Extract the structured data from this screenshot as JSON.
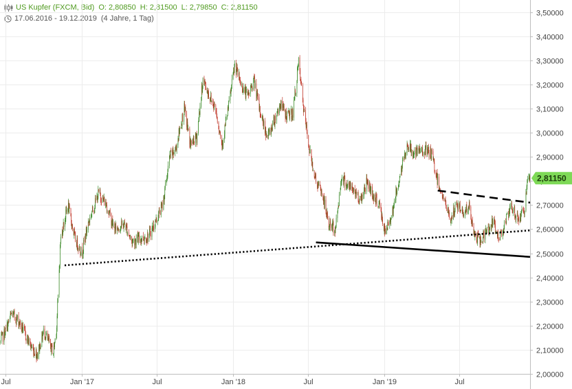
{
  "header": {
    "instrument": "US Kupfer (FXCM, Bid)",
    "open": "O: 2,80850",
    "high": "H: 2,81500",
    "low": "L: 2,79850",
    "close": "C: 2,81150",
    "range": "17.06.2016 - 19.12.2019",
    "interval": "(4 Jahre, 1 Tag)",
    "icon_ohlc": "candlestick-icon",
    "icon_time": "clock-icon"
  },
  "colors": {
    "up": "#3d8b2a",
    "down": "#c0392b",
    "last_price_bg": "#7ed957",
    "grid": "#ececec",
    "header_text": "#4f9a1f"
  },
  "chart_data": {
    "type": "candlestick",
    "title": "US Kupfer (FXCM, Bid)",
    "y_axis": {
      "min": 2.0,
      "max": 3.55,
      "side": "right",
      "ticks": [
        "3,50000",
        "3,40000",
        "3,30000",
        "3,20000",
        "3,10000",
        "3,00000",
        "2,90000",
        "2,80000",
        "2,70000",
        "2,60000",
        "2,50000",
        "2,40000",
        "2,30000",
        "2,20000",
        "2,10000",
        "2,00000"
      ],
      "tick_values": [
        3.5,
        3.4,
        3.3,
        3.2,
        3.1,
        3.0,
        2.9,
        2.8,
        2.7,
        2.6,
        2.5,
        2.4,
        2.3,
        2.2,
        2.1,
        2.0
      ]
    },
    "x_axis": {
      "start": "2016-06-17",
      "end": "2019-12-19",
      "ticks": [
        {
          "label": "Jul",
          "date": "2016-07-01"
        },
        {
          "label": "Jan '17",
          "date": "2017-01-01"
        },
        {
          "label": "Jul",
          "date": "2017-07-01"
        },
        {
          "label": "Jan '18",
          "date": "2018-01-01"
        },
        {
          "label": "Jul",
          "date": "2018-07-01"
        },
        {
          "label": "Jan '19",
          "date": "2019-01-01"
        },
        {
          "label": "Jul",
          "date": "2019-07-01"
        }
      ]
    },
    "grid": true,
    "last_price": {
      "label": "2,81150",
      "value": 2.8115
    },
    "price_path": [
      [
        "2016-06-17",
        2.13
      ],
      [
        "2016-07-01",
        2.18
      ],
      [
        "2016-07-15",
        2.25
      ],
      [
        "2016-08-01",
        2.22
      ],
      [
        "2016-08-15",
        2.17
      ],
      [
        "2016-09-01",
        2.11
      ],
      [
        "2016-09-15",
        2.08
      ],
      [
        "2016-10-01",
        2.18
      ],
      [
        "2016-10-15",
        2.12
      ],
      [
        "2016-10-24",
        2.09
      ],
      [
        "2016-11-01",
        2.2
      ],
      [
        "2016-11-10",
        2.55
      ],
      [
        "2016-11-15",
        2.6
      ],
      [
        "2016-11-28",
        2.7
      ],
      [
        "2016-12-15",
        2.56
      ],
      [
        "2017-01-01",
        2.5
      ],
      [
        "2017-01-15",
        2.62
      ],
      [
        "2017-02-10",
        2.75
      ],
      [
        "2017-03-01",
        2.7
      ],
      [
        "2017-03-20",
        2.6
      ],
      [
        "2017-04-15",
        2.62
      ],
      [
        "2017-05-01",
        2.55
      ],
      [
        "2017-05-20",
        2.56
      ],
      [
        "2017-06-10",
        2.57
      ],
      [
        "2017-06-25",
        2.62
      ],
      [
        "2017-07-15",
        2.7
      ],
      [
        "2017-08-01",
        2.9
      ],
      [
        "2017-08-15",
        2.93
      ],
      [
        "2017-09-05",
        3.1
      ],
      [
        "2017-09-20",
        2.95
      ],
      [
        "2017-10-05",
        2.98
      ],
      [
        "2017-10-20",
        3.22
      ],
      [
        "2017-11-05",
        3.15
      ],
      [
        "2017-11-20",
        3.1
      ],
      [
        "2017-12-05",
        2.95
      ],
      [
        "2017-12-20",
        3.1
      ],
      [
        "2018-01-05",
        3.28
      ],
      [
        "2018-01-20",
        3.2
      ],
      [
        "2018-02-05",
        3.15
      ],
      [
        "2018-02-20",
        3.22
      ],
      [
        "2018-03-05",
        3.1
      ],
      [
        "2018-03-25",
        2.98
      ],
      [
        "2018-04-10",
        3.05
      ],
      [
        "2018-04-25",
        3.12
      ],
      [
        "2018-05-10",
        3.07
      ],
      [
        "2018-05-25",
        3.08
      ],
      [
        "2018-06-08",
        3.29
      ],
      [
        "2018-06-20",
        3.1
      ],
      [
        "2018-07-05",
        2.92
      ],
      [
        "2018-07-20",
        2.8
      ],
      [
        "2018-08-05",
        2.74
      ],
      [
        "2018-08-20",
        2.62
      ],
      [
        "2018-09-05",
        2.6
      ],
      [
        "2018-09-20",
        2.82
      ],
      [
        "2018-10-05",
        2.78
      ],
      [
        "2018-10-20",
        2.76
      ],
      [
        "2018-11-05",
        2.72
      ],
      [
        "2018-11-20",
        2.8
      ],
      [
        "2018-12-05",
        2.74
      ],
      [
        "2018-12-20",
        2.7
      ],
      [
        "2019-01-03",
        2.58
      ],
      [
        "2019-01-20",
        2.67
      ],
      [
        "2019-02-05",
        2.8
      ],
      [
        "2019-02-25",
        2.95
      ],
      [
        "2019-03-15",
        2.91
      ],
      [
        "2019-04-05",
        2.93
      ],
      [
        "2019-04-25",
        2.91
      ],
      [
        "2019-05-10",
        2.8
      ],
      [
        "2019-05-25",
        2.72
      ],
      [
        "2019-06-10",
        2.64
      ],
      [
        "2019-06-25",
        2.7
      ],
      [
        "2019-07-10",
        2.67
      ],
      [
        "2019-07-25",
        2.69
      ],
      [
        "2019-08-05",
        2.58
      ],
      [
        "2019-08-20",
        2.55
      ],
      [
        "2019-09-05",
        2.59
      ],
      [
        "2019-09-20",
        2.63
      ],
      [
        "2019-10-05",
        2.56
      ],
      [
        "2019-10-20",
        2.63
      ],
      [
        "2019-11-05",
        2.69
      ],
      [
        "2019-11-20",
        2.64
      ],
      [
        "2019-12-05",
        2.68
      ],
      [
        "2019-12-12",
        2.78
      ],
      [
        "2019-12-19",
        2.81
      ]
    ],
    "trendlines": [
      {
        "style": "dotted",
        "from": [
          "2016-11-20",
          2.45
        ],
        "to": [
          "2019-12-19",
          2.595
        ]
      },
      {
        "style": "solid",
        "from": [
          "2018-07-20",
          2.545
        ],
        "to": [
          "2019-12-19",
          2.485
        ]
      },
      {
        "style": "dashed",
        "from": [
          "2019-05-10",
          2.76
        ],
        "to": [
          "2019-12-19",
          2.71
        ]
      }
    ]
  }
}
